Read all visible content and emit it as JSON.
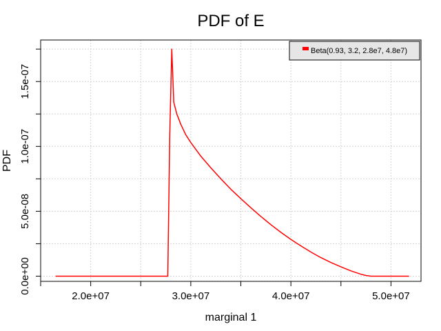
{
  "chart_data": {
    "type": "line",
    "title": "PDF of E",
    "xlabel": "marginal 1",
    "ylabel": "PDF",
    "xlim": [
      15000000,
      53000000
    ],
    "ylim": [
      -4e-09,
      1.82e-07
    ],
    "x_ticks": [
      20000000,
      30000000,
      40000000,
      50000000
    ],
    "x_tick_labels": [
      "2.0e+07",
      "3.0e+07",
      "4.0e+07",
      "5.0e+07"
    ],
    "y_ticks": [
      0,
      5e-08,
      1e-07,
      1.5e-07
    ],
    "y_tick_labels": [
      "0.0e+00",
      "5.0e-08",
      "1.0e-07",
      "1.5e-07"
    ],
    "grid": true,
    "legend_position": "top-right",
    "series": [
      {
        "name": "Beta(0.93, 3.2, 2.8e7, 4.8e7)",
        "color": "#ff0000",
        "x": [
          16500000,
          27700000,
          27900000,
          28100000,
          28300000,
          28600000,
          29000000,
          29500000,
          30000000,
          31000000,
          32000000,
          33000000,
          34000000,
          35000000,
          36000000,
          37000000,
          38000000,
          39000000,
          40000000,
          41000000,
          42000000,
          43000000,
          44000000,
          45000000,
          46000000,
          47000000,
          47500000,
          48000000,
          49000000,
          51800000
        ],
        "y": [
          0,
          0,
          1.1e-07,
          1.75e-07,
          1.34e-07,
          1.25e-07,
          1.17e-07,
          1.09e-07,
          1.03e-07,
          9.25e-08,
          8.35e-08,
          7.5e-08,
          6.7e-08,
          5.97e-08,
          5.27e-08,
          4.6e-08,
          3.97e-08,
          3.38e-08,
          2.83e-08,
          2.33e-08,
          1.86e-08,
          1.43e-08,
          1.05e-08,
          7.2e-09,
          4.1e-09,
          1.5e-09,
          5e-10,
          0,
          0,
          0
        ]
      }
    ]
  }
}
